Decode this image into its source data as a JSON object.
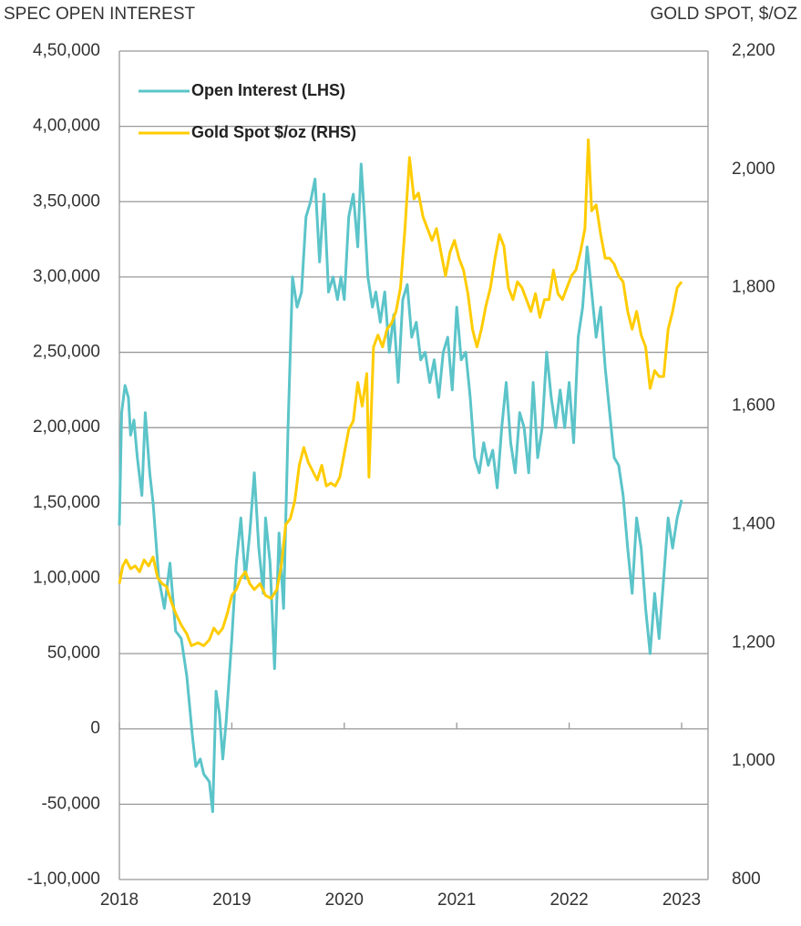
{
  "chart_data": {
    "type": "line",
    "y_label": "SPEC OPEN INTEREST",
    "y2_label": "GOLD SPOT, $/OZ",
    "xlim": [
      2018,
      2023.235
    ],
    "xticks": [
      2018,
      2019,
      2020,
      2021,
      2022,
      2023
    ],
    "ylim": [
      -100000,
      450000
    ],
    "yticks": [
      {
        "value": -100000,
        "label": "-1,00,000"
      },
      {
        "value": -50000,
        "label": "-50,000"
      },
      0,
      {
        "value": 50000,
        "label": "50,000"
      },
      {
        "value": 100000,
        "label": "1,00,000"
      },
      {
        "value": 150000,
        "label": "1,50,000"
      },
      {
        "value": 200000,
        "label": "2,00,000"
      },
      {
        "value": 250000,
        "label": "2,50,000"
      },
      {
        "value": 300000,
        "label": "3,00,000"
      },
      {
        "value": 350000,
        "label": "3,50,000"
      },
      {
        "value": 400000,
        "label": "4,00,000"
      },
      {
        "value": 450000,
        "label": "4,50,000"
      }
    ],
    "y2lim": [
      800,
      2200
    ],
    "y2ticks": [
      800,
      {
        "value": 1000,
        "label": "1,000"
      },
      {
        "value": 1200,
        "label": "1,200"
      },
      {
        "value": 1400,
        "label": "1,400"
      },
      {
        "value": 1600,
        "label": "1,600"
      },
      {
        "value": 1800,
        "label": "1,800"
      },
      {
        "value": 2000,
        "label": "2,000"
      },
      {
        "value": 2200,
        "label": "2,200"
      }
    ],
    "grid": true,
    "legend": "upper left",
    "series": [
      {
        "name": "Open Interest (LHS)",
        "color": "#5bc4c9",
        "axis": "y",
        "x": [
          2018.0,
          2018.02,
          2018.05,
          2018.08,
          2018.1,
          2018.13,
          2018.16,
          2018.2,
          2018.23,
          2018.27,
          2018.3,
          2018.35,
          2018.4,
          2018.45,
          2018.5,
          2018.55,
          2018.6,
          2018.65,
          2018.68,
          2018.72,
          2018.75,
          2018.8,
          2018.83,
          2018.86,
          2018.89,
          2018.92,
          2018.95,
          2019.0,
          2019.04,
          2019.08,
          2019.12,
          2019.16,
          2019.2,
          2019.24,
          2019.28,
          2019.3,
          2019.34,
          2019.38,
          2019.42,
          2019.46,
          2019.5,
          2019.54,
          2019.58,
          2019.62,
          2019.66,
          2019.7,
          2019.74,
          2019.78,
          2019.82,
          2019.86,
          2019.9,
          2019.94,
          2019.97,
          2020.0,
          2020.04,
          2020.08,
          2020.12,
          2020.15,
          2020.18,
          2020.21,
          2020.25,
          2020.28,
          2020.32,
          2020.36,
          2020.4,
          2020.44,
          2020.48,
          2020.52,
          2020.56,
          2020.6,
          2020.64,
          2020.68,
          2020.72,
          2020.76,
          2020.8,
          2020.84,
          2020.88,
          2020.92,
          2020.96,
          2021.0,
          2021.04,
          2021.08,
          2021.12,
          2021.16,
          2021.2,
          2021.24,
          2021.28,
          2021.32,
          2021.36,
          2021.4,
          2021.44,
          2021.48,
          2021.52,
          2021.56,
          2021.6,
          2021.64,
          2021.68,
          2021.72,
          2021.76,
          2021.8,
          2021.84,
          2021.88,
          2021.92,
          2021.96,
          2022.0,
          2022.04,
          2022.08,
          2022.12,
          2022.16,
          2022.2,
          2022.24,
          2022.28,
          2022.32,
          2022.36,
          2022.4,
          2022.44,
          2022.48,
          2022.52,
          2022.56,
          2022.6,
          2022.64,
          2022.68,
          2022.72,
          2022.76,
          2022.8,
          2022.84,
          2022.88,
          2022.92,
          2022.96,
          2023.0
        ],
        "values": [
          135000,
          210000,
          228000,
          220000,
          195000,
          205000,
          180000,
          155000,
          210000,
          170000,
          150000,
          100000,
          80000,
          110000,
          65000,
          60000,
          35000,
          -5000,
          -25000,
          -20000,
          -30000,
          -35000,
          -55000,
          25000,
          10000,
          -20000,
          5000,
          60000,
          110000,
          140000,
          100000,
          130000,
          170000,
          120000,
          90000,
          140000,
          110000,
          40000,
          130000,
          80000,
          200000,
          300000,
          280000,
          290000,
          340000,
          350000,
          365000,
          310000,
          355000,
          290000,
          300000,
          285000,
          300000,
          285000,
          340000,
          355000,
          320000,
          375000,
          340000,
          300000,
          280000,
          290000,
          270000,
          290000,
          250000,
          275000,
          230000,
          285000,
          295000,
          260000,
          270000,
          245000,
          250000,
          230000,
          245000,
          220000,
          250000,
          260000,
          225000,
          280000,
          245000,
          250000,
          220000,
          180000,
          170000,
          190000,
          175000,
          185000,
          160000,
          200000,
          230000,
          190000,
          170000,
          210000,
          200000,
          170000,
          230000,
          180000,
          200000,
          250000,
          220000,
          200000,
          225000,
          200000,
          230000,
          190000,
          260000,
          280000,
          320000,
          290000,
          260000,
          280000,
          240000,
          210000,
          180000,
          175000,
          155000,
          120000,
          90000,
          140000,
          120000,
          80000,
          50000,
          90000,
          60000,
          100000,
          140000,
          120000,
          140000,
          152000
        ]
      },
      {
        "name": "Gold Spot $/oz (RHS)",
        "color": "#ffcc00",
        "axis": "y2",
        "x": [
          2018.0,
          2018.03,
          2018.06,
          2018.1,
          2018.14,
          2018.18,
          2018.22,
          2018.26,
          2018.3,
          2018.34,
          2018.38,
          2018.42,
          2018.46,
          2018.5,
          2018.55,
          2018.6,
          2018.64,
          2018.7,
          2018.75,
          2018.8,
          2018.84,
          2018.88,
          2018.92,
          2018.96,
          2019.0,
          2019.04,
          2019.08,
          2019.12,
          2019.16,
          2019.2,
          2019.25,
          2019.3,
          2019.35,
          2019.4,
          2019.44,
          2019.48,
          2019.52,
          2019.56,
          2019.6,
          2019.64,
          2019.68,
          2019.72,
          2019.76,
          2019.8,
          2019.84,
          2019.88,
          2019.92,
          2019.96,
          2020.0,
          2020.04,
          2020.08,
          2020.12,
          2020.16,
          2020.2,
          2020.22,
          2020.26,
          2020.3,
          2020.34,
          2020.38,
          2020.42,
          2020.46,
          2020.5,
          2020.54,
          2020.58,
          2020.62,
          2020.66,
          2020.7,
          2020.74,
          2020.78,
          2020.82,
          2020.86,
          2020.9,
          2020.94,
          2020.98,
          2021.02,
          2021.06,
          2021.1,
          2021.14,
          2021.18,
          2021.22,
          2021.26,
          2021.3,
          2021.34,
          2021.38,
          2021.42,
          2021.46,
          2021.5,
          2021.54,
          2021.58,
          2021.62,
          2021.66,
          2021.7,
          2021.74,
          2021.78,
          2021.82,
          2021.86,
          2021.9,
          2021.94,
          2021.98,
          2022.02,
          2022.06,
          2022.1,
          2022.14,
          2022.17,
          2022.2,
          2022.24,
          2022.28,
          2022.32,
          2022.36,
          2022.4,
          2022.44,
          2022.48,
          2022.52,
          2022.56,
          2022.6,
          2022.64,
          2022.68,
          2022.72,
          2022.76,
          2022.8,
          2022.84,
          2022.88,
          2022.92,
          2022.96,
          2023.0
        ],
        "values": [
          1300,
          1330,
          1340,
          1325,
          1330,
          1320,
          1340,
          1330,
          1345,
          1310,
          1300,
          1295,
          1270,
          1250,
          1230,
          1215,
          1195,
          1200,
          1195,
          1205,
          1225,
          1215,
          1225,
          1250,
          1280,
          1290,
          1310,
          1320,
          1300,
          1290,
          1300,
          1280,
          1275,
          1290,
          1330,
          1400,
          1410,
          1440,
          1500,
          1530,
          1505,
          1490,
          1475,
          1500,
          1465,
          1470,
          1465,
          1480,
          1520,
          1560,
          1575,
          1640,
          1600,
          1655,
          1480,
          1700,
          1720,
          1700,
          1730,
          1740,
          1760,
          1800,
          1900,
          2020,
          1950,
          1960,
          1920,
          1900,
          1880,
          1900,
          1860,
          1820,
          1860,
          1880,
          1850,
          1830,
          1790,
          1730,
          1700,
          1730,
          1770,
          1800,
          1850,
          1890,
          1870,
          1800,
          1780,
          1810,
          1800,
          1780,
          1760,
          1790,
          1750,
          1780,
          1780,
          1830,
          1790,
          1780,
          1800,
          1820,
          1830,
          1860,
          1900,
          2050,
          1930,
          1940,
          1890,
          1850,
          1850,
          1840,
          1820,
          1810,
          1760,
          1730,
          1760,
          1720,
          1700,
          1630,
          1660,
          1650,
          1650,
          1730,
          1760,
          1800,
          1810
        ]
      }
    ]
  }
}
